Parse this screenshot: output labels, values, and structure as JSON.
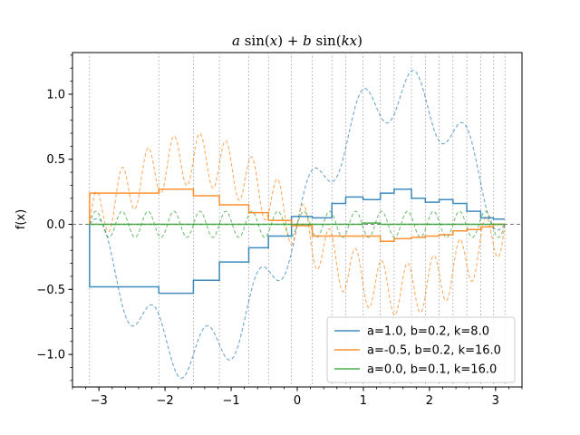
{
  "chart_data": {
    "type": "line",
    "title": "a sin(x) + b sin(kx)",
    "ylabel": "f(x)",
    "xlabel": "",
    "xlim": [
      -3.4,
      3.4
    ],
    "ylim": [
      -1.25,
      1.32
    ],
    "xticks": [
      -3,
      -2,
      -1,
      0,
      1,
      2,
      3
    ],
    "xtick_labels": [
      "−3",
      "−2",
      "−1",
      "0",
      "1",
      "2",
      "3"
    ],
    "yticks": [
      -1.0,
      -0.5,
      0.0,
      0.5,
      1.0
    ],
    "ytick_labels": [
      "−1.0",
      "−0.5",
      "0.0",
      "0.5",
      "1.0"
    ],
    "x_minor_step": 0.2,
    "y_minor_step": 0.1,
    "breakpoints": [
      -3.14159,
      -2.094,
      -1.571,
      -1.178,
      -0.733,
      -0.436,
      -0.087,
      0.227,
      0.524,
      0.733,
      0.995,
      1.257,
      1.466,
      1.728,
      1.937,
      2.147,
      2.356,
      2.565,
      2.775,
      2.967,
      3.14159
    ],
    "series": [
      {
        "name": "a=1.0, b=0.2, k=8.0",
        "a": 1.0,
        "b": 0.2,
        "k": 8.0,
        "color": "#1f77b4",
        "step_values": [
          -0.48,
          -0.53,
          -0.43,
          -0.29,
          -0.18,
          -0.09,
          0.06,
          0.05,
          0.16,
          0.21,
          0.19,
          0.24,
          0.27,
          0.2,
          0.17,
          0.19,
          0.16,
          0.1,
          0.05,
          0.04
        ]
      },
      {
        "name": "a=-0.5, b=0.2, k=16.0",
        "a": -0.5,
        "b": 0.2,
        "k": 16.0,
        "color": "#ff7f0e",
        "step_values": [
          0.24,
          0.27,
          0.22,
          0.15,
          0.09,
          0.03,
          -0.01,
          -0.09,
          -0.09,
          -0.09,
          -0.09,
          -0.13,
          -0.11,
          -0.1,
          -0.09,
          -0.08,
          -0.05,
          -0.04,
          -0.02,
          0.0
        ]
      },
      {
        "name": "a=0.0, b=0.1, k=16.0",
        "a": 0.0,
        "b": 0.1,
        "k": 16.0,
        "color": "#2ca02c",
        "step_values": [
          0.0,
          0.0,
          0.0,
          0.0,
          0.0,
          0.0,
          0.0,
          0.0,
          0.0,
          0.0,
          0.01,
          0.0,
          0.0,
          0.0,
          0.0,
          0.0,
          0.0,
          0.0,
          0.0,
          0.0
        ]
      }
    ],
    "legend_location": "lower right",
    "grid": "vertical dashed at breakpoints",
    "zero_line": true
  }
}
